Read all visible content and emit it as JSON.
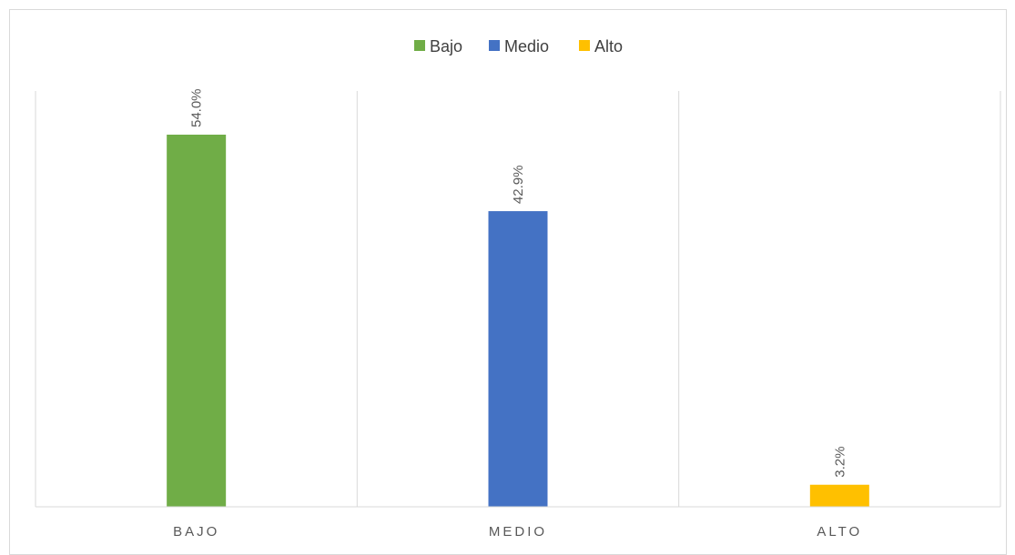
{
  "chart_data": {
    "type": "bar",
    "title": "",
    "xlabel": "",
    "ylabel": "",
    "categories": [
      "BAJO",
      "MEDIO",
      "ALTO"
    ],
    "values": [
      54.0,
      42.9,
      3.2
    ],
    "value_labels": [
      "54.0%",
      "42.9%",
      "3.2%"
    ],
    "unit": "%",
    "ylim": [
      0,
      60
    ],
    "grid": "vertical category separators",
    "legend_position": "top",
    "legend": [
      {
        "name": "Bajo",
        "color": "#70ad47"
      },
      {
        "name": "Medio",
        "color": "#4472c4"
      },
      {
        "name": "Alto",
        "color": "#ffc000"
      }
    ],
    "colors": [
      "#70ad47",
      "#4472c4",
      "#ffc000"
    ]
  }
}
